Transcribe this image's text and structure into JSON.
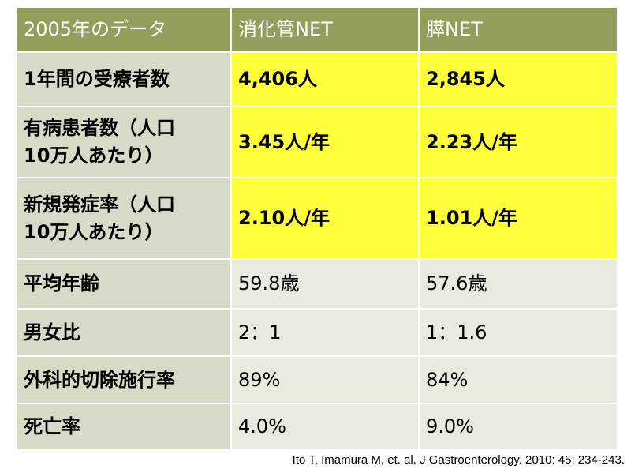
{
  "table": {
    "header": [
      "2005年のデータ",
      "消化管NET",
      "膵NET"
    ],
    "rows": [
      [
        "1年間の受療者数",
        "4,406人",
        "2,845人"
      ],
      [
        "有病患者数（人口\n10万人あたり）",
        "3.45人/年",
        "2.23人/年"
      ],
      [
        "新規発症率（人口\n10万人あたり）",
        "2.10人/年",
        "1.01人/年"
      ],
      [
        "平均年齢",
        "59.8歳",
        "57.6歳"
      ],
      [
        "男女比",
        "2：1",
        "1：1.6"
      ],
      [
        "外科的切除施行率",
        "89%",
        "84%"
      ],
      [
        "死亡率",
        "4.0%",
        "9.0%"
      ]
    ]
  },
  "citation": "Ito T, Imamura M, et. al. J Gastroenterology. 2010: 45; 234-243."
}
